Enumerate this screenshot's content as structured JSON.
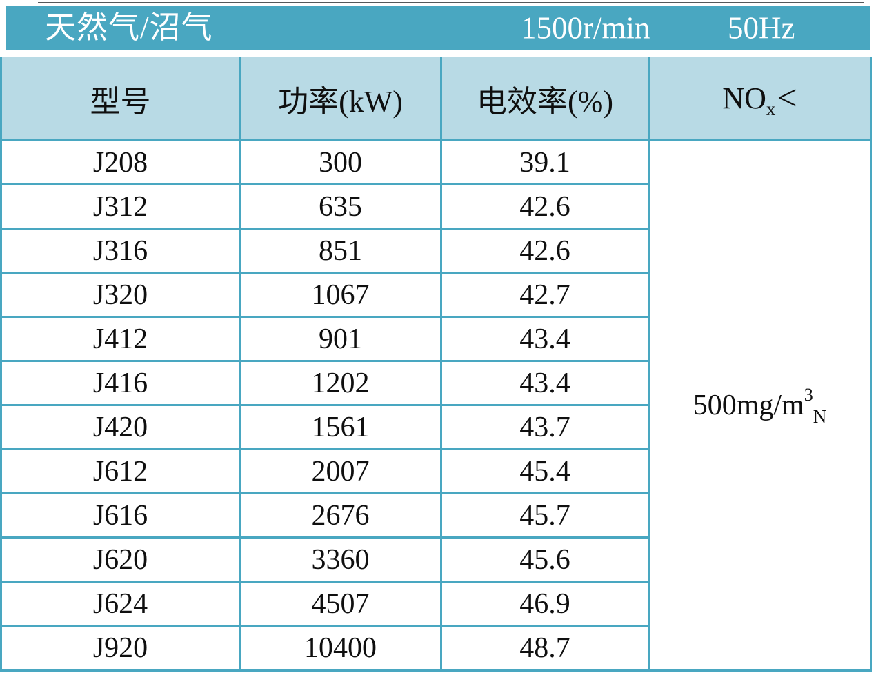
{
  "colors": {
    "teal": "#49a7c1",
    "header_fill": "#b8dae5",
    "border": "#49a7c1",
    "text": "#0f0f0f",
    "title_text": "#ffffff",
    "top_rule": "#54585a",
    "background": "#ffffff"
  },
  "title_bar": {
    "fuel_type": "天然气/沼气",
    "speed": "1500r/min",
    "frequency": "50Hz"
  },
  "table": {
    "headers": [
      "型号",
      "功率(kW)",
      "电效率(%)"
    ],
    "nox_header": {
      "base": "NO",
      "sub": "x",
      "operator": "<"
    },
    "rows": [
      {
        "model": "J208",
        "power": "300",
        "efficiency": "39.1"
      },
      {
        "model": "J312",
        "power": "635",
        "efficiency": "42.6"
      },
      {
        "model": "J316",
        "power": "851",
        "efficiency": "42.6"
      },
      {
        "model": "J320",
        "power": "1067",
        "efficiency": "42.7"
      },
      {
        "model": "J412",
        "power": "901",
        "efficiency": "43.4"
      },
      {
        "model": "J416",
        "power": "1202",
        "efficiency": "43.4"
      },
      {
        "model": "J420",
        "power": "1561",
        "efficiency": "43.7"
      },
      {
        "model": "J612",
        "power": "2007",
        "efficiency": "45.4"
      },
      {
        "model": "J616",
        "power": "2676",
        "efficiency": "45.7"
      },
      {
        "model": "J620",
        "power": "3360",
        "efficiency": "45.6"
      },
      {
        "model": "J624",
        "power": "4507",
        "efficiency": "46.9"
      },
      {
        "model": "J920",
        "power": "10400",
        "efficiency": "48.7"
      }
    ],
    "nox_limit": {
      "value_prefix": "500mg/m",
      "superscript": "3",
      "subscript": "N"
    }
  }
}
